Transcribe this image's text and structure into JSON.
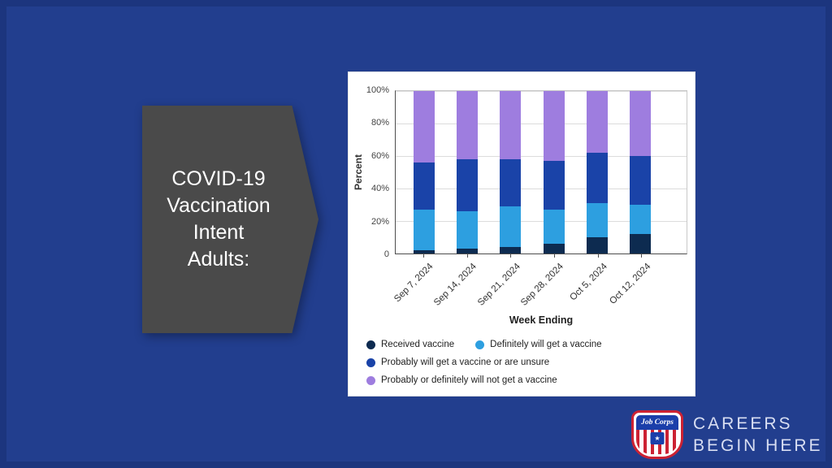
{
  "slide": {
    "background_color": "#223E8E",
    "title": "COVID-19\nVaccination\nIntent\nAdults:"
  },
  "chart_data": {
    "type": "bar",
    "stacked": true,
    "xlabel": "Week Ending",
    "ylabel": "Percent",
    "ylim": [
      0,
      100
    ],
    "grid": true,
    "legend_position": "bottom",
    "categories": [
      "Sep 7, 2024",
      "Sep 14, 2024",
      "Sep 21, 2024",
      "Sep 28, 2024",
      "Oct 5, 2024",
      "Oct 12, 2024"
    ],
    "series": [
      {
        "name": "Received vaccine",
        "color": "#0d2b50",
        "values": [
          2,
          3,
          4,
          6,
          10,
          12
        ]
      },
      {
        "name": "Definitely will get a vaccine",
        "color": "#2d9fe0",
        "values": [
          25,
          23,
          25,
          21,
          21,
          18
        ]
      },
      {
        "name": "Probably will get a vaccine or are unsure",
        "color": "#1a43a8",
        "values": [
          29,
          32,
          29,
          30,
          31,
          30
        ]
      },
      {
        "name": "Probably or definitely will not get a vaccine",
        "color": "#9e7ddf",
        "values": [
          44,
          42,
          42,
          43,
          38,
          40
        ]
      }
    ],
    "yticks": [
      {
        "value": 0,
        "label": "0"
      },
      {
        "value": 20,
        "label": "20%"
      },
      {
        "value": 40,
        "label": "40%"
      },
      {
        "value": 60,
        "label": "60%"
      },
      {
        "value": 80,
        "label": "80%"
      },
      {
        "value": 100,
        "label": "100%"
      }
    ],
    "legend_rows": [
      [
        0,
        1
      ],
      [
        2
      ],
      [
        3
      ]
    ]
  },
  "logo": {
    "brand": "Job Corps",
    "tagline_line1": "CAREERS",
    "tagline_line2": "BEGIN HERE"
  }
}
